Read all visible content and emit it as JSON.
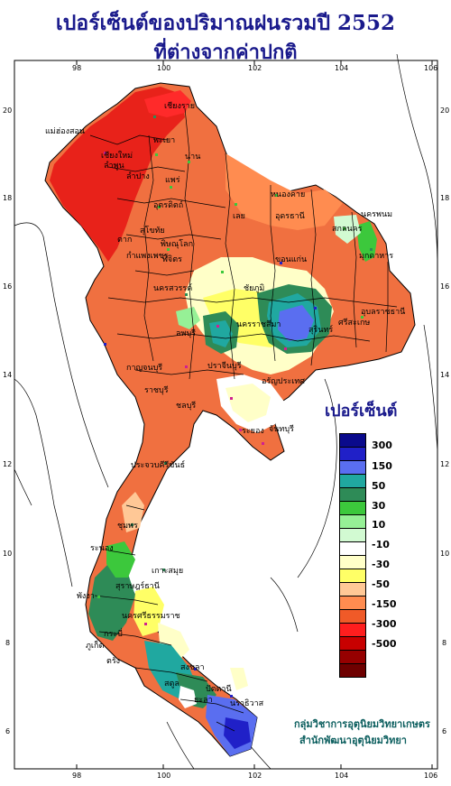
{
  "header": {
    "title_line1": "เปอร์เซ็นต์ของปริมาณฝนรวมปี  2552",
    "title_line2": "ที่ต่างจากค่าปกติ"
  },
  "axes": {
    "lon_ticks": [
      "98",
      "100",
      "102",
      "104",
      "106"
    ],
    "lat_ticks": [
      "20",
      "18",
      "16",
      "14",
      "12",
      "10",
      "8",
      "6"
    ]
  },
  "legend": {
    "title": "เปอร์เซ็นต์",
    "labels": [
      "300",
      "150",
      "50",
      "30",
      "10",
      "-10",
      "-30",
      "-50",
      "-150",
      "-300",
      "-500"
    ],
    "colors": [
      "#0a0a8c",
      "#2020c8",
      "#5a6ef0",
      "#20a8a0",
      "#2e8b57",
      "#3cc83c",
      "#96f096",
      "#d2fad2",
      "#ffffff",
      "#ffffc8",
      "#ffff66",
      "#ffc896",
      "#ff8c50",
      "#f05a28",
      "#ff1e1e",
      "#c80000",
      "#960000",
      "#6e0000"
    ]
  },
  "credits": {
    "line1": "กลุ่มวิชาการอุตุนิยมวิทยาเกษตร",
    "line2": "สำนักพัฒนาอุตุนิยมวิทยา"
  },
  "provinces": [
    "เชียงราย",
    "แม่ฮ่องสอน",
    "พะเยา",
    "เชียงใหม่",
    "ลำพูน",
    "ลำปาง",
    "น่าน",
    "แพร่",
    "อุตรดิตถ์",
    "หนองคาย",
    "นครพนม",
    "สกลนคร",
    "อุดรธานี",
    "เลย",
    "มุกดาหาร",
    "ขอนแก่น",
    "ตาก",
    "สุโขทัย",
    "พิษณุโลก",
    "กำแพงเพชร",
    "พิจิตร",
    "นครสวรรค์",
    "ชัยภูมิ",
    "อุบลราชธานี",
    "นครราชสีมา",
    "สุรินทร์",
    "ศรีสะเกษ",
    "ลพบุรี",
    "กาญจนบุรี",
    "ราชบุรี",
    "ปราจีนบุรี",
    "อรัญประเทศ",
    "ชลบุรี",
    "ระยอง",
    "จันทบุรี",
    "ประจวบคีรีขันธ์",
    "ชุมพร",
    "ระนอง",
    "สุราษฎร์ธานี",
    "เกาะสมุย",
    "กระบี่",
    "พังงา",
    "ภูเก็ต",
    "นครศรีธรรมราช",
    "ตรัง",
    "สงขลา",
    "สตูล",
    "ปัตตานี",
    "ยะลา",
    "นราธิวาส"
  ]
}
